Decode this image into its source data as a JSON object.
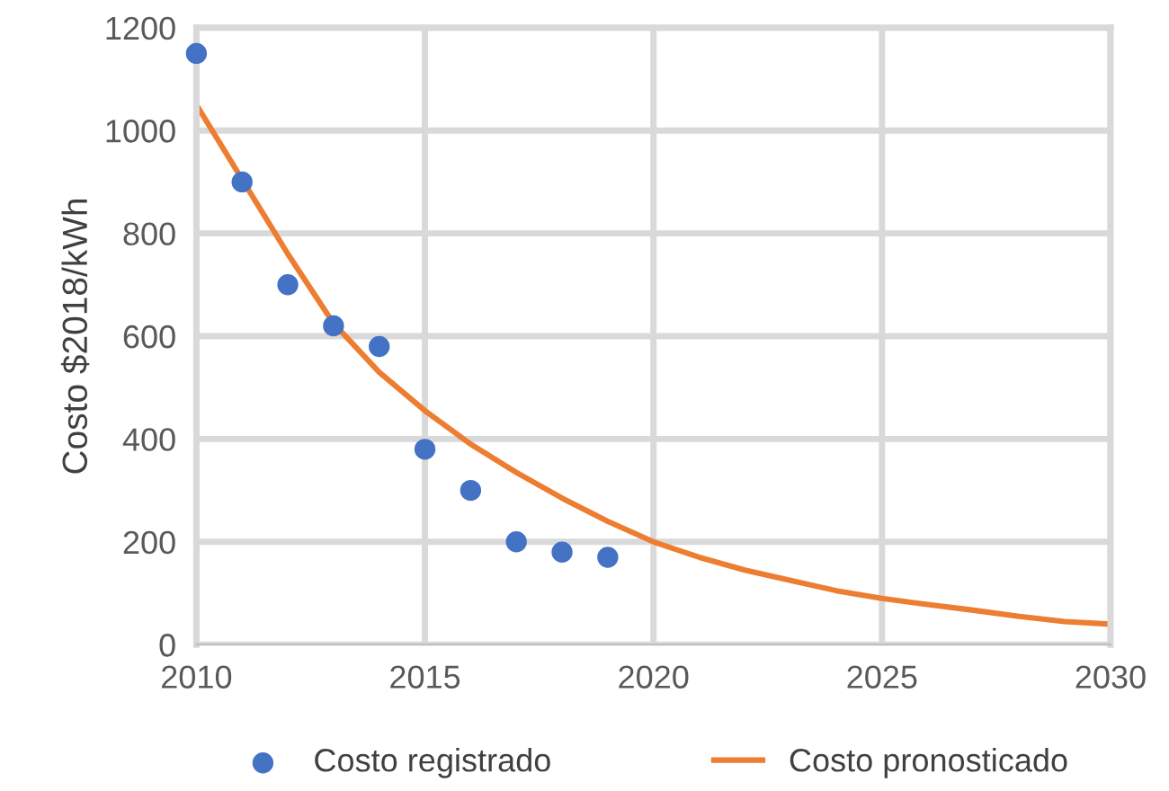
{
  "chart_data": {
    "type": "scatter",
    "ylabel": "Costo $2018/kWh",
    "xlim": [
      2010,
      2030
    ],
    "xticks": [
      2010,
      2015,
      2020,
      2025,
      2030
    ],
    "ylim": [
      0,
      1200
    ],
    "yticks": [
      0,
      200,
      400,
      600,
      800,
      1000,
      1200
    ],
    "grid": true,
    "legend": "bottom",
    "series": [
      {
        "name": "Costo registrado",
        "color": "#4472c4",
        "marker": "circle",
        "x": [
          2010,
          2011,
          2012,
          2013,
          2014,
          2015,
          2016,
          2017,
          2018,
          2019
        ],
        "values": [
          1150,
          900,
          700,
          620,
          580,
          380,
          300,
          200,
          180,
          170
        ]
      },
      {
        "name": "Costo pronosticado",
        "type": "line",
        "color": "#ed7d31",
        "marker": "none",
        "line_style": "solid",
        "x": [
          2010,
          2011,
          2012,
          2013,
          2014,
          2015,
          2016,
          2017,
          2018,
          2019,
          2020,
          2021,
          2022,
          2023,
          2024,
          2025,
          2026,
          2027,
          2028,
          2029,
          2030
        ],
        "values": [
          1050,
          905,
          760,
          625,
          530,
          455,
          390,
          335,
          285,
          240,
          200,
          170,
          145,
          125,
          105,
          90,
          78,
          67,
          55,
          45,
          40
        ]
      }
    ]
  }
}
